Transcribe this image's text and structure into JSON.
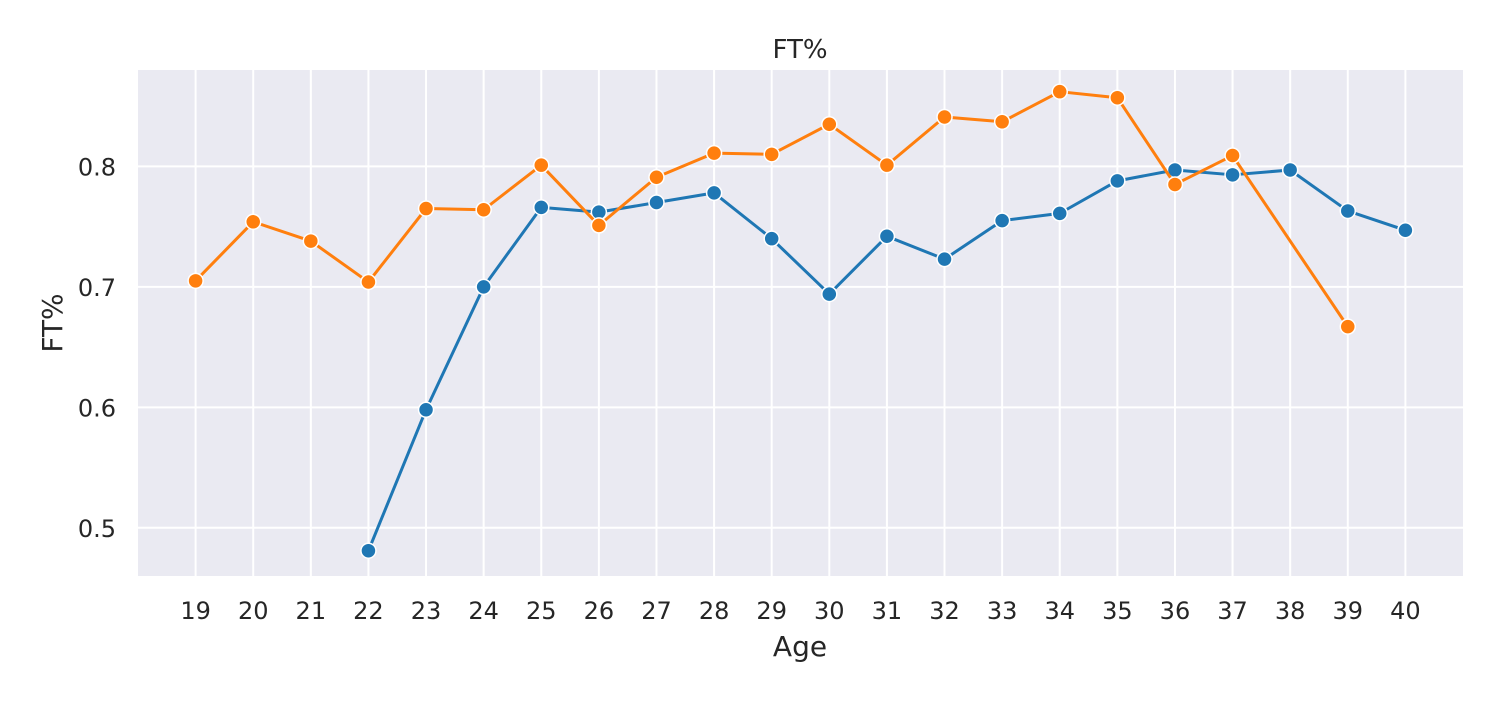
{
  "chart_data": {
    "type": "line",
    "title": "FT%",
    "xlabel": "Age",
    "ylabel": "FT%",
    "x": [
      19,
      20,
      21,
      22,
      23,
      24,
      25,
      26,
      27,
      28,
      29,
      30,
      31,
      32,
      33,
      34,
      35,
      36,
      37,
      38,
      39,
      40
    ],
    "xlim": [
      18,
      41
    ],
    "ylim": [
      0.46,
      0.88
    ],
    "yticks": [
      0.5,
      0.6,
      0.7,
      0.8
    ],
    "ytick_labels": [
      "0.5",
      "0.6",
      "0.7",
      "0.8"
    ],
    "grid": true,
    "legend": "none",
    "series": [
      {
        "color": "#1f77b4",
        "x": [
          22,
          23,
          24,
          25,
          26,
          27,
          28,
          29,
          30,
          31,
          32,
          33,
          34,
          35,
          36,
          37,
          38,
          39,
          40
        ],
        "values": [
          0.481,
          0.598,
          0.7,
          0.766,
          0.762,
          0.77,
          0.778,
          0.74,
          0.694,
          0.742,
          0.723,
          0.755,
          0.761,
          0.788,
          0.797,
          0.793,
          0.797,
          0.763,
          0.747
        ]
      },
      {
        "color": "#ff7f0e",
        "x": [
          19,
          20,
          21,
          22,
          23,
          24,
          25,
          26,
          27,
          28,
          29,
          30,
          31,
          32,
          33,
          34,
          35,
          36,
          37,
          39
        ],
        "values": [
          0.705,
          0.754,
          0.738,
          0.704,
          0.765,
          0.764,
          0.801,
          0.751,
          0.791,
          0.811,
          0.81,
          0.835,
          0.801,
          0.841,
          0.837,
          0.862,
          0.857,
          0.785,
          0.809,
          0.667
        ]
      }
    ]
  },
  "colors": {
    "plot_background": "#eaeaf2",
    "grid": "#ffffff",
    "text": "#262626"
  }
}
